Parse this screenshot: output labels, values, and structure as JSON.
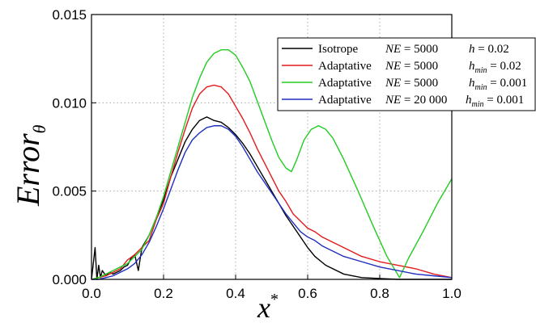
{
  "chart_data": {
    "type": "line",
    "title": "",
    "xlabel": "x",
    "xlabel_sup": "*",
    "ylabel": "Error",
    "ylabel_sub": "θ",
    "xlim": [
      0.0,
      1.0
    ],
    "ylim": [
      0.0,
      0.015
    ],
    "xticks": [
      "0.0",
      "0.2",
      "0.4",
      "0.6",
      "0.8",
      "1.0"
    ],
    "yticks": [
      "0.000",
      "0.005",
      "0.010",
      "0.015"
    ],
    "grid": "dotted",
    "legend_position": "top-right",
    "series": [
      {
        "name": "Isotrope",
        "ne": "NE",
        "ne_val": "5000",
        "h_base": "h",
        "h_sub": "",
        "h_val": "0.02",
        "color": "#000000",
        "x": [
          0.0,
          0.01,
          0.015,
          0.02,
          0.025,
          0.03,
          0.04,
          0.05,
          0.06,
          0.07,
          0.08,
          0.09,
          0.1,
          0.11,
          0.12,
          0.13,
          0.14,
          0.16,
          0.18,
          0.2,
          0.22,
          0.24,
          0.26,
          0.28,
          0.3,
          0.32,
          0.34,
          0.36,
          0.38,
          0.4,
          0.42,
          0.44,
          0.46,
          0.48,
          0.5,
          0.52,
          0.54,
          0.56,
          0.58,
          0.6,
          0.62,
          0.65,
          0.7,
          0.75,
          0.8,
          0.85,
          0.9,
          1.0
        ],
        "y": [
          0.0,
          0.0018,
          0.0,
          0.0008,
          0.0001,
          0.0005,
          0.0002,
          0.0004,
          0.0003,
          0.0004,
          0.0005,
          0.0007,
          0.0008,
          0.0012,
          0.0014,
          0.0005,
          0.0018,
          0.0025,
          0.0035,
          0.0045,
          0.0058,
          0.0068,
          0.0078,
          0.0085,
          0.009,
          0.0092,
          0.009,
          0.0089,
          0.0086,
          0.0082,
          0.0077,
          0.0071,
          0.0064,
          0.0057,
          0.005,
          0.0043,
          0.0036,
          0.003,
          0.0024,
          0.0018,
          0.0013,
          0.0008,
          0.0003,
          0.0001,
          5e-05,
          0.0,
          0.0,
          0.0
        ]
      },
      {
        "name": "Adaptative",
        "ne": "NE",
        "ne_val": "5000",
        "h_base": "h",
        "h_sub": "min",
        "h_val": "0.02",
        "color": "#e31a1c",
        "x": [
          0.0,
          0.02,
          0.04,
          0.06,
          0.08,
          0.1,
          0.12,
          0.14,
          0.16,
          0.18,
          0.2,
          0.22,
          0.24,
          0.26,
          0.28,
          0.3,
          0.32,
          0.34,
          0.36,
          0.38,
          0.4,
          0.42,
          0.44,
          0.46,
          0.48,
          0.5,
          0.52,
          0.54,
          0.56,
          0.58,
          0.6,
          0.62,
          0.64,
          0.66,
          0.7,
          0.75,
          0.8,
          0.85,
          0.9,
          0.95,
          1.0
        ],
        "y": [
          0.0,
          0.0001,
          0.0002,
          0.0004,
          0.0006,
          0.0011,
          0.0014,
          0.0018,
          0.0022,
          0.0034,
          0.0043,
          0.0058,
          0.0072,
          0.0085,
          0.0097,
          0.0105,
          0.0109,
          0.011,
          0.0109,
          0.0105,
          0.0098,
          0.0091,
          0.0083,
          0.0074,
          0.0066,
          0.0058,
          0.005,
          0.0044,
          0.0037,
          0.0033,
          0.0029,
          0.0027,
          0.0024,
          0.0022,
          0.0018,
          0.0013,
          0.001,
          0.0008,
          0.0006,
          0.0003,
          0.0001
        ]
      },
      {
        "name": "Adaptative",
        "ne": "NE",
        "ne_val": "5000",
        "h_base": "h",
        "h_sub": "min",
        "h_val": "0.001",
        "color": "#22cc22",
        "x": [
          0.0,
          0.02,
          0.04,
          0.06,
          0.08,
          0.1,
          0.12,
          0.14,
          0.16,
          0.18,
          0.2,
          0.22,
          0.24,
          0.26,
          0.28,
          0.3,
          0.32,
          0.34,
          0.36,
          0.38,
          0.4,
          0.42,
          0.44,
          0.46,
          0.48,
          0.5,
          0.52,
          0.54,
          0.555,
          0.57,
          0.59,
          0.61,
          0.63,
          0.65,
          0.67,
          0.7,
          0.74,
          0.78,
          0.82,
          0.855,
          0.88,
          0.92,
          0.96,
          1.0
        ],
        "y": [
          0.0,
          0.0001,
          0.0003,
          0.0005,
          0.0007,
          0.0009,
          0.0013,
          0.0017,
          0.0025,
          0.0035,
          0.0047,
          0.0061,
          0.0075,
          0.0089,
          0.0103,
          0.0114,
          0.0123,
          0.0128,
          0.013,
          0.013,
          0.0127,
          0.012,
          0.0112,
          0.0101,
          0.009,
          0.0079,
          0.0069,
          0.0063,
          0.0061,
          0.0068,
          0.0079,
          0.0085,
          0.0087,
          0.0085,
          0.008,
          0.0068,
          0.005,
          0.0031,
          0.0013,
          0.0001,
          0.0012,
          0.0027,
          0.0043,
          0.0057
        ]
      },
      {
        "name": "Adaptative",
        "ne": "NE",
        "ne_val": "20 000",
        "h_base": "h",
        "h_sub": "min",
        "h_val": "0.001",
        "color": "#1f2fbf",
        "x": [
          0.0,
          0.02,
          0.04,
          0.06,
          0.08,
          0.1,
          0.12,
          0.14,
          0.16,
          0.18,
          0.2,
          0.22,
          0.24,
          0.26,
          0.28,
          0.3,
          0.32,
          0.34,
          0.36,
          0.38,
          0.4,
          0.42,
          0.44,
          0.46,
          0.48,
          0.5,
          0.52,
          0.54,
          0.56,
          0.58,
          0.6,
          0.62,
          0.64,
          0.66,
          0.7,
          0.75,
          0.8,
          0.85,
          0.9,
          0.95,
          1.0
        ],
        "y": [
          0.0,
          0.0,
          0.0001,
          0.0002,
          0.0004,
          0.0006,
          0.0009,
          0.0014,
          0.0021,
          0.003,
          0.004,
          0.0051,
          0.0062,
          0.0072,
          0.0079,
          0.0083,
          0.0086,
          0.0087,
          0.0087,
          0.0085,
          0.0081,
          0.0075,
          0.0068,
          0.0061,
          0.0055,
          0.0049,
          0.0043,
          0.0037,
          0.0032,
          0.0027,
          0.0024,
          0.0022,
          0.0019,
          0.0017,
          0.0013,
          0.001,
          0.0007,
          0.0005,
          0.0003,
          0.0002,
          0.0001
        ]
      }
    ]
  }
}
